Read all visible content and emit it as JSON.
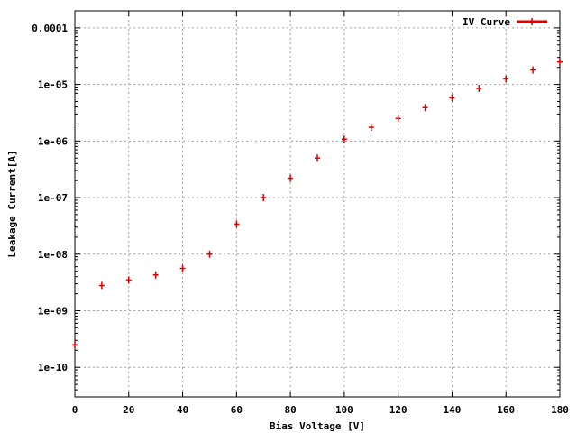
{
  "chart_data": {
    "type": "scatter",
    "title": "",
    "xlabel": "Bias Voltage [V]",
    "ylabel": "Leakage Current[A]",
    "xlim": [
      0,
      180
    ],
    "ylim": [
      3e-11,
      0.0002
    ],
    "y_scale": "log",
    "grid": true,
    "legend_position": "top-right",
    "x_ticks": [
      0,
      20,
      40,
      60,
      80,
      100,
      120,
      140,
      160,
      180
    ],
    "x_tick_labels": [
      "0",
      "20",
      "40",
      "60",
      "80",
      "100",
      "120",
      "140",
      "160",
      "180"
    ],
    "y_ticks": [
      1e-10,
      1e-09,
      1e-08,
      1e-07,
      1e-06,
      1e-05,
      0.0001
    ],
    "y_tick_labels": [
      "1e-10",
      "1e-09",
      "1e-08",
      "1e-07",
      "1e-06",
      "1e-05",
      "0.0001"
    ],
    "series": [
      {
        "name": "IV Curve",
        "color": "#e00000",
        "marker": "plus",
        "x": [
          0,
          10,
          20,
          30,
          40,
          50,
          60,
          70,
          80,
          90,
          100,
          110,
          120,
          130,
          140,
          150,
          160,
          170,
          180
        ],
        "y": [
          2.5e-10,
          2.8e-09,
          3.5e-09,
          4.3e-09,
          5.6e-09,
          1e-08,
          3.4e-08,
          1e-07,
          2.2e-07,
          5e-07,
          1.08e-06,
          1.75e-06,
          2.5e-06,
          3.9e-06,
          5.8e-06,
          8.5e-06,
          1.25e-05,
          1.8e-05,
          2.5e-05
        ]
      }
    ]
  }
}
